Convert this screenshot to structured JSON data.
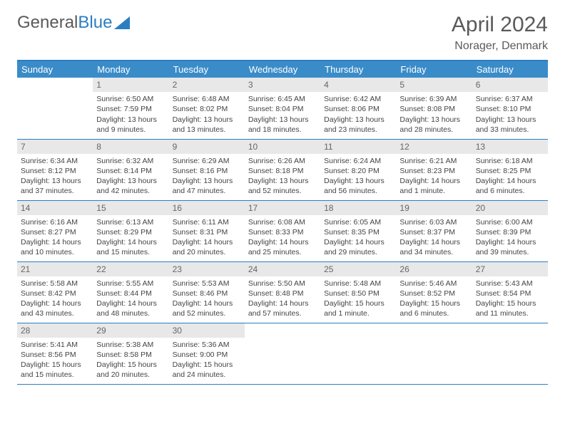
{
  "brand": {
    "text_gray": "General",
    "text_blue": "Blue"
  },
  "title": "April 2024",
  "location": "Norager, Denmark",
  "day_headers": [
    "Sunday",
    "Monday",
    "Tuesday",
    "Wednesday",
    "Thursday",
    "Friday",
    "Saturday"
  ],
  "colors": {
    "header_bg": "#3a8cc9",
    "header_border": "#2b7ec2",
    "daynum_bg": "#e8e8e8",
    "text": "#444444"
  },
  "weeks": [
    [
      null,
      {
        "n": "1",
        "sunrise": "Sunrise: 6:50 AM",
        "sunset": "Sunset: 7:59 PM",
        "day1": "Daylight: 13 hours",
        "day2": "and 9 minutes."
      },
      {
        "n": "2",
        "sunrise": "Sunrise: 6:48 AM",
        "sunset": "Sunset: 8:02 PM",
        "day1": "Daylight: 13 hours",
        "day2": "and 13 minutes."
      },
      {
        "n": "3",
        "sunrise": "Sunrise: 6:45 AM",
        "sunset": "Sunset: 8:04 PM",
        "day1": "Daylight: 13 hours",
        "day2": "and 18 minutes."
      },
      {
        "n": "4",
        "sunrise": "Sunrise: 6:42 AM",
        "sunset": "Sunset: 8:06 PM",
        "day1": "Daylight: 13 hours",
        "day2": "and 23 minutes."
      },
      {
        "n": "5",
        "sunrise": "Sunrise: 6:39 AM",
        "sunset": "Sunset: 8:08 PM",
        "day1": "Daylight: 13 hours",
        "day2": "and 28 minutes."
      },
      {
        "n": "6",
        "sunrise": "Sunrise: 6:37 AM",
        "sunset": "Sunset: 8:10 PM",
        "day1": "Daylight: 13 hours",
        "day2": "and 33 minutes."
      }
    ],
    [
      {
        "n": "7",
        "sunrise": "Sunrise: 6:34 AM",
        "sunset": "Sunset: 8:12 PM",
        "day1": "Daylight: 13 hours",
        "day2": "and 37 minutes."
      },
      {
        "n": "8",
        "sunrise": "Sunrise: 6:32 AM",
        "sunset": "Sunset: 8:14 PM",
        "day1": "Daylight: 13 hours",
        "day2": "and 42 minutes."
      },
      {
        "n": "9",
        "sunrise": "Sunrise: 6:29 AM",
        "sunset": "Sunset: 8:16 PM",
        "day1": "Daylight: 13 hours",
        "day2": "and 47 minutes."
      },
      {
        "n": "10",
        "sunrise": "Sunrise: 6:26 AM",
        "sunset": "Sunset: 8:18 PM",
        "day1": "Daylight: 13 hours",
        "day2": "and 52 minutes."
      },
      {
        "n": "11",
        "sunrise": "Sunrise: 6:24 AM",
        "sunset": "Sunset: 8:20 PM",
        "day1": "Daylight: 13 hours",
        "day2": "and 56 minutes."
      },
      {
        "n": "12",
        "sunrise": "Sunrise: 6:21 AM",
        "sunset": "Sunset: 8:23 PM",
        "day1": "Daylight: 14 hours",
        "day2": "and 1 minute."
      },
      {
        "n": "13",
        "sunrise": "Sunrise: 6:18 AM",
        "sunset": "Sunset: 8:25 PM",
        "day1": "Daylight: 14 hours",
        "day2": "and 6 minutes."
      }
    ],
    [
      {
        "n": "14",
        "sunrise": "Sunrise: 6:16 AM",
        "sunset": "Sunset: 8:27 PM",
        "day1": "Daylight: 14 hours",
        "day2": "and 10 minutes."
      },
      {
        "n": "15",
        "sunrise": "Sunrise: 6:13 AM",
        "sunset": "Sunset: 8:29 PM",
        "day1": "Daylight: 14 hours",
        "day2": "and 15 minutes."
      },
      {
        "n": "16",
        "sunrise": "Sunrise: 6:11 AM",
        "sunset": "Sunset: 8:31 PM",
        "day1": "Daylight: 14 hours",
        "day2": "and 20 minutes."
      },
      {
        "n": "17",
        "sunrise": "Sunrise: 6:08 AM",
        "sunset": "Sunset: 8:33 PM",
        "day1": "Daylight: 14 hours",
        "day2": "and 25 minutes."
      },
      {
        "n": "18",
        "sunrise": "Sunrise: 6:05 AM",
        "sunset": "Sunset: 8:35 PM",
        "day1": "Daylight: 14 hours",
        "day2": "and 29 minutes."
      },
      {
        "n": "19",
        "sunrise": "Sunrise: 6:03 AM",
        "sunset": "Sunset: 8:37 PM",
        "day1": "Daylight: 14 hours",
        "day2": "and 34 minutes."
      },
      {
        "n": "20",
        "sunrise": "Sunrise: 6:00 AM",
        "sunset": "Sunset: 8:39 PM",
        "day1": "Daylight: 14 hours",
        "day2": "and 39 minutes."
      }
    ],
    [
      {
        "n": "21",
        "sunrise": "Sunrise: 5:58 AM",
        "sunset": "Sunset: 8:42 PM",
        "day1": "Daylight: 14 hours",
        "day2": "and 43 minutes."
      },
      {
        "n": "22",
        "sunrise": "Sunrise: 5:55 AM",
        "sunset": "Sunset: 8:44 PM",
        "day1": "Daylight: 14 hours",
        "day2": "and 48 minutes."
      },
      {
        "n": "23",
        "sunrise": "Sunrise: 5:53 AM",
        "sunset": "Sunset: 8:46 PM",
        "day1": "Daylight: 14 hours",
        "day2": "and 52 minutes."
      },
      {
        "n": "24",
        "sunrise": "Sunrise: 5:50 AM",
        "sunset": "Sunset: 8:48 PM",
        "day1": "Daylight: 14 hours",
        "day2": "and 57 minutes."
      },
      {
        "n": "25",
        "sunrise": "Sunrise: 5:48 AM",
        "sunset": "Sunset: 8:50 PM",
        "day1": "Daylight: 15 hours",
        "day2": "and 1 minute."
      },
      {
        "n": "26",
        "sunrise": "Sunrise: 5:46 AM",
        "sunset": "Sunset: 8:52 PM",
        "day1": "Daylight: 15 hours",
        "day2": "and 6 minutes."
      },
      {
        "n": "27",
        "sunrise": "Sunrise: 5:43 AM",
        "sunset": "Sunset: 8:54 PM",
        "day1": "Daylight: 15 hours",
        "day2": "and 11 minutes."
      }
    ],
    [
      {
        "n": "28",
        "sunrise": "Sunrise: 5:41 AM",
        "sunset": "Sunset: 8:56 PM",
        "day1": "Daylight: 15 hours",
        "day2": "and 15 minutes."
      },
      {
        "n": "29",
        "sunrise": "Sunrise: 5:38 AM",
        "sunset": "Sunset: 8:58 PM",
        "day1": "Daylight: 15 hours",
        "day2": "and 20 minutes."
      },
      {
        "n": "30",
        "sunrise": "Sunrise: 5:36 AM",
        "sunset": "Sunset: 9:00 PM",
        "day1": "Daylight: 15 hours",
        "day2": "and 24 minutes."
      },
      null,
      null,
      null,
      null
    ]
  ]
}
